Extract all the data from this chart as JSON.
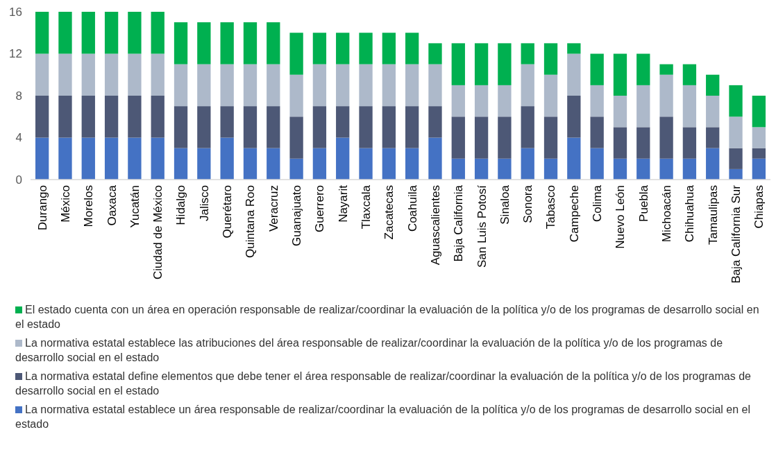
{
  "chart_data": {
    "type": "bar",
    "stacked": true,
    "legend": "bottom",
    "grid": false,
    "categories": [
      "Durango",
      "México",
      "Morelos",
      "Oaxaca",
      "Yucatán",
      "Ciudad de México",
      "Hidalgo",
      "Jalisco",
      "Querétaro",
      "Quintana Roo",
      "Veracruz",
      "Guanajuato",
      "Guerrero",
      "Nayarit",
      "Tlaxcala",
      "Zacatecas",
      "Coahuila",
      "Aguascalientes",
      "Baja California",
      "San Luis Potosí",
      "Sinaloa",
      "Sonora",
      "Tabasco",
      "Campeche",
      "Colima",
      "Nuevo León",
      "Puebla",
      "Michoacán",
      "Chihuahua",
      "Tamaulipas",
      "Baja California Sur",
      "Chiapas"
    ],
    "ylim": [
      0,
      16
    ],
    "yticks": [
      0,
      4,
      8,
      12,
      16
    ],
    "series": [
      {
        "name": "La normativa estatal establece un área responsable de realizar/coordinar la evaluación de la política y/o de los programas de desarrollo social en el estado",
        "color": "#4472c4",
        "values": [
          4,
          4,
          4,
          4,
          4,
          4,
          3,
          3,
          4,
          3,
          3,
          2,
          3,
          4,
          3,
          3,
          3,
          4,
          2,
          2,
          2,
          3,
          2,
          4,
          3,
          2,
          2,
          2,
          2,
          3,
          1,
          2
        ]
      },
      {
        "name": "La normativa estatal define elementos que debe tener el área responsable de realizar/coordinar la evaluación de la política y/o de los programas de desarrollo social en el estado",
        "color": "#4d5876",
        "values": [
          4,
          4,
          4,
          4,
          4,
          4,
          4,
          4,
          3,
          4,
          4,
          4,
          4,
          3,
          4,
          4,
          4,
          3,
          4,
          4,
          4,
          4,
          4,
          4,
          3,
          3,
          3,
          4,
          3,
          2,
          2,
          1
        ]
      },
      {
        "name": "La normativa estatal establece las atribuciones del área responsable de realizar/coordinar la evaluación de la política y/o de los programas de desarrollo social en el estado",
        "color": "#adb9ca",
        "values": [
          4,
          4,
          4,
          4,
          4,
          4,
          4,
          4,
          4,
          4,
          4,
          4,
          4,
          4,
          4,
          4,
          4,
          4,
          3,
          3,
          3,
          4,
          4,
          4,
          3,
          3,
          4,
          4,
          4,
          3,
          3,
          2
        ]
      },
      {
        "name": "El estado cuenta con un área en operación responsable de realizar/coordinar la evaluación de la política y/o de los programas de desarrollo social en el estado",
        "color": "#00b050",
        "values": [
          4,
          4,
          4,
          4,
          4,
          4,
          4,
          4,
          4,
          4,
          4,
          4,
          3,
          3,
          3,
          3,
          3,
          2,
          4,
          4,
          4,
          2,
          3,
          1,
          3,
          4,
          3,
          1,
          2,
          2,
          3,
          3
        ]
      }
    ]
  }
}
